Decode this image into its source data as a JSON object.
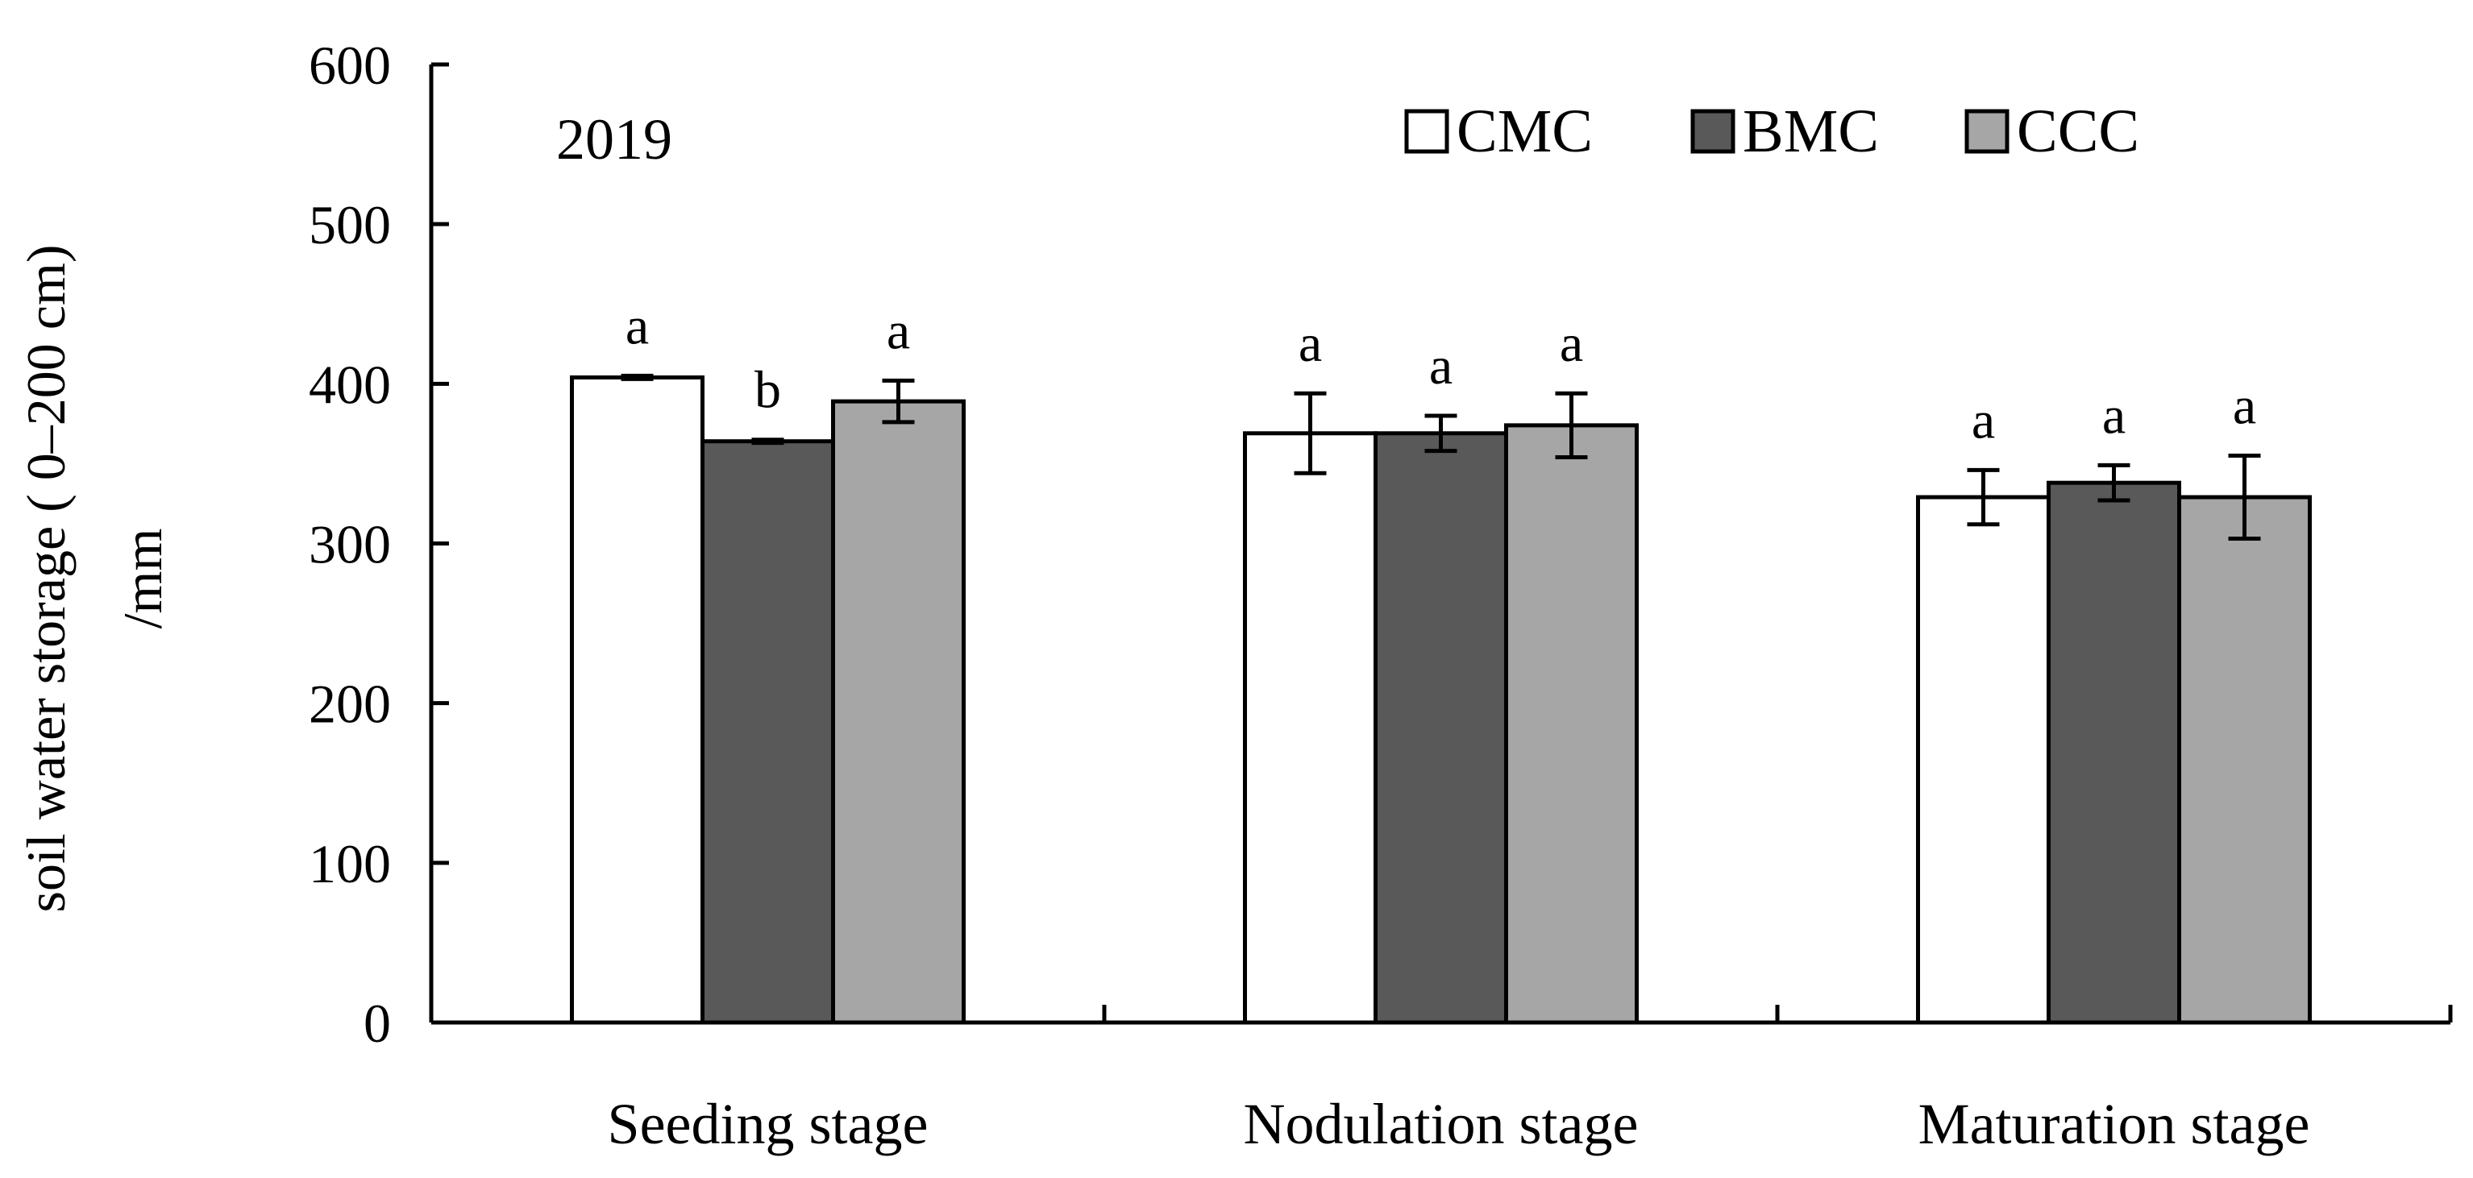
{
  "chart_data": {
    "type": "bar",
    "annotation": "2019",
    "ylabel_lines": [
      "soil water storage ( 0–200 cm)",
      "/mm"
    ],
    "xlabel": "",
    "ylim": [
      0,
      600
    ],
    "yticks": [
      0,
      100,
      200,
      300,
      400,
      500,
      600
    ],
    "categories": [
      "Seeding stage",
      "Nodulation stage",
      "Maturation stage"
    ],
    "series": [
      {
        "name": "CMC",
        "color": "#ffffff",
        "values": [
          404,
          369,
          329
        ],
        "errors": [
          1,
          25,
          17
        ],
        "letters": [
          "a",
          "a",
          "a"
        ]
      },
      {
        "name": "BMC",
        "color": "#595959",
        "values": [
          364,
          369,
          338
        ],
        "errors": [
          1,
          11,
          11
        ],
        "letters": [
          "b",
          "a",
          "a"
        ]
      },
      {
        "name": "CCC",
        "color": "#a6a6a6",
        "values": [
          389,
          374,
          329
        ],
        "errors": [
          13,
          20,
          26
        ],
        "letters": [
          "a",
          "a",
          "a"
        ]
      }
    ],
    "legend_position": "top-right",
    "grid": false
  }
}
